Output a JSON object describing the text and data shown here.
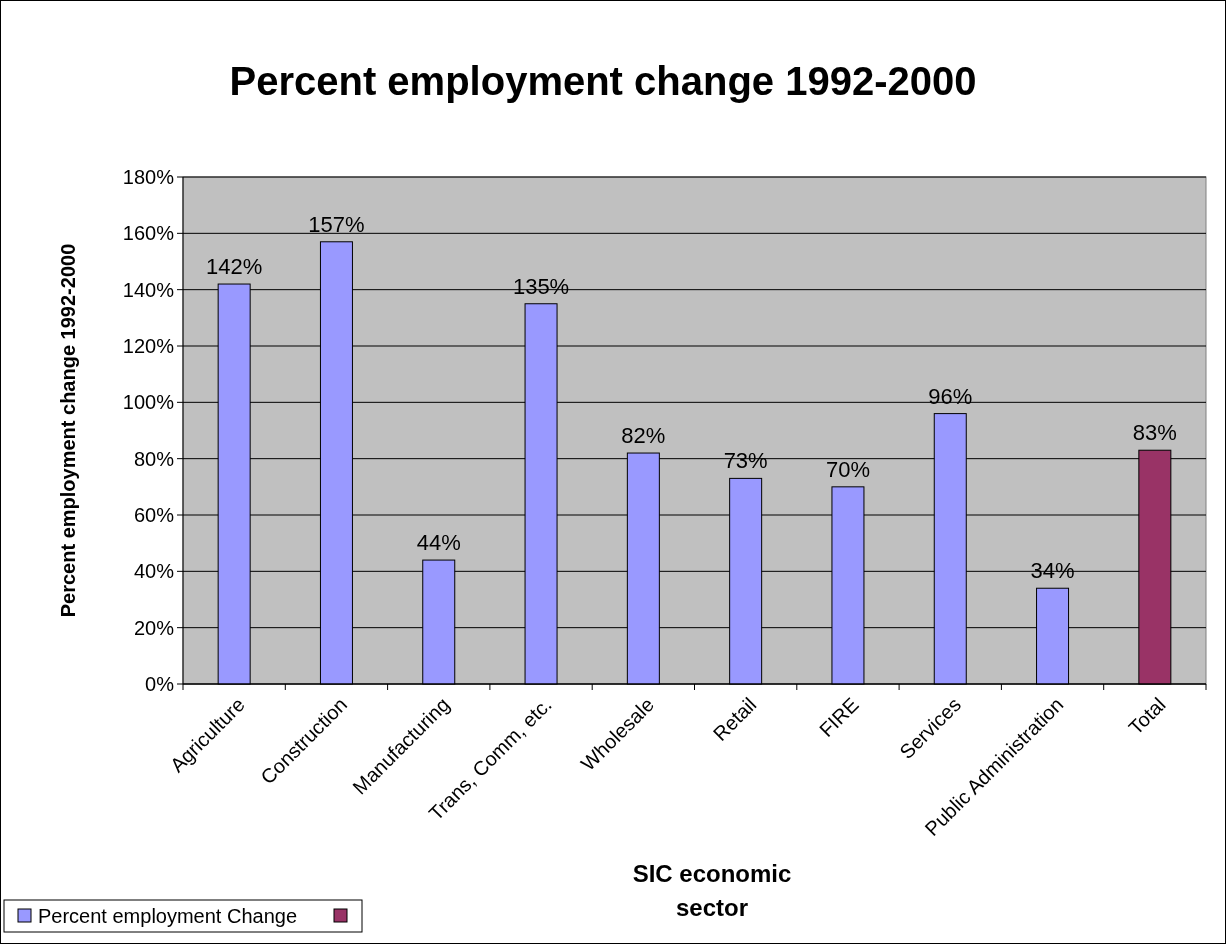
{
  "chart_data": {
    "type": "bar",
    "title": "Percent employment change 1992-2000",
    "xlabel": "SIC economic sector",
    "ylabel": "Percent employment change 1992-2000",
    "categories": [
      "Agriculture",
      "Construction",
      "Manufacturing",
      "Trans, Comm, etc.",
      "Wholesale",
      "Retail",
      "FIRE",
      "Services",
      "Public Administration",
      "Total"
    ],
    "series": [
      {
        "name": "Percent employment Change",
        "color": "#9999ff",
        "values": [
          142,
          157,
          44,
          135,
          82,
          73,
          70,
          96,
          34,
          null
        ],
        "value_labels": [
          "142%",
          "157%",
          "44%",
          "135%",
          "82%",
          "73%",
          "70%",
          "96%",
          "34%",
          null
        ]
      },
      {
        "color": "#993366",
        "values": [
          null,
          null,
          null,
          null,
          null,
          null,
          null,
          null,
          null,
          83
        ],
        "value_labels": [
          null,
          null,
          null,
          null,
          null,
          null,
          null,
          null,
          null,
          "83%"
        ]
      }
    ],
    "ylim": [
      0,
      180
    ],
    "yticks": [
      {
        "value": 0,
        "label": "0%"
      },
      {
        "value": 20,
        "label": "20%"
      },
      {
        "value": 40,
        "label": "40%"
      },
      {
        "value": 60,
        "label": "60%"
      },
      {
        "value": 80,
        "label": "80%"
      },
      {
        "value": 100,
        "label": "100%"
      },
      {
        "value": 120,
        "label": "120%"
      },
      {
        "value": 140,
        "label": "140%"
      },
      {
        "value": 160,
        "label": "160%"
      },
      {
        "value": 180,
        "label": "180%"
      }
    ],
    "grid": "y",
    "legend": "bottom left"
  }
}
